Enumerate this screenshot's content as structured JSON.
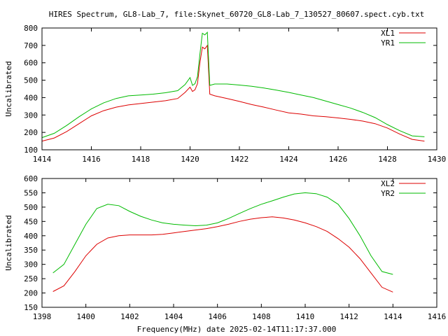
{
  "title": "HIRES Spectrum, GL8-Lab_7, file:Skynet_60720_GL8-Lab_7_130527_80607.spect.cyb.txt",
  "footer": "Frequency(MHz) date 2025-02-14T11:17:37.000",
  "chart_data": [
    {
      "type": "line",
      "ylabel": "Uncalibrated",
      "xlim": [
        1414,
        1430
      ],
      "ylim": [
        100,
        800
      ],
      "xticks": [
        1414,
        1416,
        1418,
        1420,
        1422,
        1424,
        1426,
        1428,
        1430
      ],
      "yticks": [
        100,
        200,
        300,
        400,
        500,
        600,
        700,
        800
      ],
      "legend": "top-right",
      "series": [
        {
          "name": "XL1",
          "color": "#dd0000",
          "points": [
            [
              1414.0,
              150
            ],
            [
              1414.5,
              168
            ],
            [
              1415.0,
              205
            ],
            [
              1415.5,
              250
            ],
            [
              1416.0,
              295
            ],
            [
              1416.5,
              325
            ],
            [
              1417.0,
              345
            ],
            [
              1417.5,
              358
            ],
            [
              1418.0,
              366
            ],
            [
              1418.5,
              374
            ],
            [
              1419.0,
              382
            ],
            [
              1419.5,
              395
            ],
            [
              1419.8,
              430
            ],
            [
              1420.0,
              460
            ],
            [
              1420.1,
              435
            ],
            [
              1420.2,
              445
            ],
            [
              1420.3,
              480
            ],
            [
              1420.4,
              600
            ],
            [
              1420.5,
              690
            ],
            [
              1420.6,
              680
            ],
            [
              1420.7,
              700
            ],
            [
              1420.8,
              420
            ],
            [
              1421.0,
              410
            ],
            [
              1421.5,
              395
            ],
            [
              1422.0,
              378
            ],
            [
              1422.5,
              360
            ],
            [
              1423.0,
              345
            ],
            [
              1423.5,
              328
            ],
            [
              1424.0,
              312
            ],
            [
              1424.5,
              305
            ],
            [
              1425.0,
              295
            ],
            [
              1425.5,
              290
            ],
            [
              1426.0,
              283
            ],
            [
              1426.5,
              275
            ],
            [
              1427.0,
              265
            ],
            [
              1427.5,
              250
            ],
            [
              1428.0,
              225
            ],
            [
              1428.5,
              190
            ],
            [
              1429.0,
              160
            ],
            [
              1429.5,
              150
            ]
          ]
        },
        {
          "name": "YR1",
          "color": "#00bb00",
          "points": [
            [
              1414.0,
              170
            ],
            [
              1414.5,
              195
            ],
            [
              1415.0,
              240
            ],
            [
              1415.5,
              290
            ],
            [
              1416.0,
              335
            ],
            [
              1416.5,
              370
            ],
            [
              1417.0,
              395
            ],
            [
              1417.5,
              410
            ],
            [
              1418.0,
              415
            ],
            [
              1418.5,
              420
            ],
            [
              1419.0,
              428
            ],
            [
              1419.5,
              440
            ],
            [
              1419.8,
              475
            ],
            [
              1420.0,
              515
            ],
            [
              1420.1,
              470
            ],
            [
              1420.2,
              480
            ],
            [
              1420.3,
              520
            ],
            [
              1420.4,
              650
            ],
            [
              1420.5,
              770
            ],
            [
              1420.6,
              760
            ],
            [
              1420.7,
              775
            ],
            [
              1420.8,
              470
            ],
            [
              1421.0,
              478
            ],
            [
              1421.5,
              478
            ],
            [
              1422.0,
              472
            ],
            [
              1422.5,
              465
            ],
            [
              1423.0,
              455
            ],
            [
              1423.5,
              443
            ],
            [
              1424.0,
              430
            ],
            [
              1424.5,
              415
            ],
            [
              1425.0,
              400
            ],
            [
              1425.5,
              380
            ],
            [
              1426.0,
              360
            ],
            [
              1426.5,
              340
            ],
            [
              1427.0,
              315
            ],
            [
              1427.5,
              285
            ],
            [
              1428.0,
              245
            ],
            [
              1428.5,
              210
            ],
            [
              1429.0,
              180
            ],
            [
              1429.5,
              175
            ]
          ]
        }
      ]
    },
    {
      "type": "line",
      "ylabel": "Uncalibrated",
      "xlim": [
        1398,
        1416
      ],
      "ylim": [
        150,
        600
      ],
      "xticks": [
        1398,
        1400,
        1402,
        1404,
        1406,
        1408,
        1410,
        1412,
        1414,
        1416
      ],
      "yticks": [
        150,
        200,
        250,
        300,
        350,
        400,
        450,
        500,
        550,
        600
      ],
      "legend": "top-right",
      "series": [
        {
          "name": "XL2",
          "color": "#dd0000",
          "points": [
            [
              1398.5,
              205
            ],
            [
              1399.0,
              225
            ],
            [
              1399.5,
              275
            ],
            [
              1400.0,
              330
            ],
            [
              1400.5,
              370
            ],
            [
              1401.0,
              392
            ],
            [
              1401.5,
              400
            ],
            [
              1402.0,
              403
            ],
            [
              1402.5,
              403
            ],
            [
              1403.0,
              403
            ],
            [
              1403.5,
              405
            ],
            [
              1404.0,
              410
            ],
            [
              1404.5,
              415
            ],
            [
              1405.0,
              420
            ],
            [
              1405.5,
              425
            ],
            [
              1406.0,
              432
            ],
            [
              1406.5,
              440
            ],
            [
              1407.0,
              450
            ],
            [
              1407.5,
              458
            ],
            [
              1408.0,
              463
            ],
            [
              1408.5,
              466
            ],
            [
              1409.0,
              462
            ],
            [
              1409.5,
              455
            ],
            [
              1410.0,
              445
            ],
            [
              1410.5,
              432
            ],
            [
              1411.0,
              415
            ],
            [
              1411.5,
              390
            ],
            [
              1412.0,
              360
            ],
            [
              1412.5,
              320
            ],
            [
              1413.0,
              270
            ],
            [
              1413.5,
              220
            ],
            [
              1414.0,
              203
            ]
          ]
        },
        {
          "name": "YR2",
          "color": "#00bb00",
          "points": [
            [
              1398.5,
              270
            ],
            [
              1399.0,
              300
            ],
            [
              1399.5,
              370
            ],
            [
              1400.0,
              440
            ],
            [
              1400.5,
              495
            ],
            [
              1401.0,
              510
            ],
            [
              1401.5,
              505
            ],
            [
              1402.0,
              485
            ],
            [
              1402.5,
              468
            ],
            [
              1403.0,
              455
            ],
            [
              1403.5,
              445
            ],
            [
              1404.0,
              440
            ],
            [
              1404.5,
              437
            ],
            [
              1405.0,
              435
            ],
            [
              1405.5,
              437
            ],
            [
              1406.0,
              445
            ],
            [
              1406.5,
              460
            ],
            [
              1407.0,
              478
            ],
            [
              1407.5,
              495
            ],
            [
              1408.0,
              510
            ],
            [
              1408.5,
              522
            ],
            [
              1409.0,
              535
            ],
            [
              1409.5,
              546
            ],
            [
              1410.0,
              550
            ],
            [
              1410.5,
              547
            ],
            [
              1411.0,
              535
            ],
            [
              1411.5,
              510
            ],
            [
              1412.0,
              460
            ],
            [
              1412.5,
              400
            ],
            [
              1413.0,
              330
            ],
            [
              1413.5,
              275
            ],
            [
              1414.0,
              265
            ]
          ]
        }
      ]
    }
  ]
}
